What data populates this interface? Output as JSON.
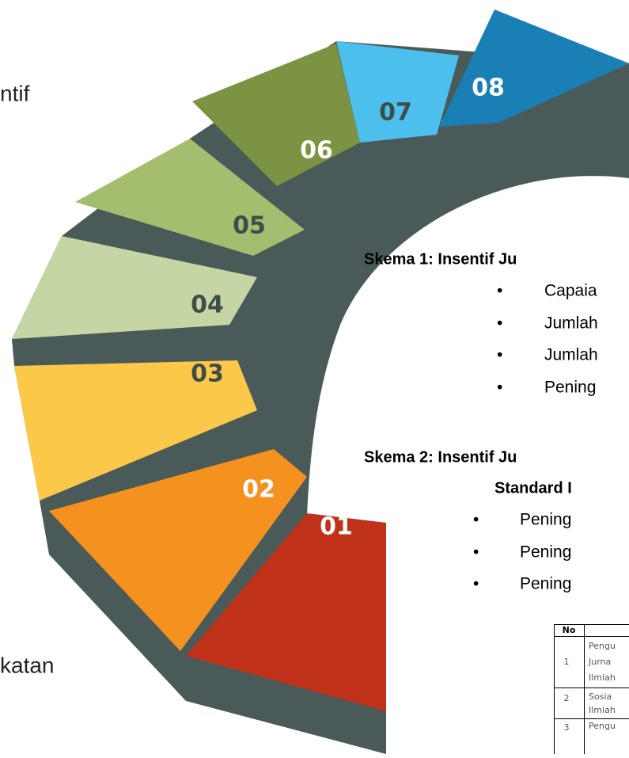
{
  "left_texts": [
    "ntif",
    "katan"
  ],
  "steps": [
    "01",
    "02",
    "03",
    "04",
    "05",
    "06",
    "07",
    "08"
  ],
  "skema": [
    {
      "title": "Skema 1: Insentif Ju",
      "bullets": [
        "Capaia",
        "Jumlah",
        "Jumlah",
        "Pening"
      ]
    },
    {
      "title_lines": [
        "Skema 2: Insentif Ju",
        "Standard I"
      ],
      "bullets": [
        "Pening",
        "Pening",
        "Pening"
      ]
    }
  ],
  "table": {
    "header": [
      "No"
    ],
    "rows": [
      {
        "no": "1",
        "lines": [
          "Pengu",
          "Jurna",
          "Ilmiah"
        ]
      },
      {
        "no": "2",
        "lines": [
          "Sosia",
          "Ilmiah"
        ]
      },
      {
        "no": "3",
        "lines": [
          "Pengu"
        ]
      }
    ]
  }
}
